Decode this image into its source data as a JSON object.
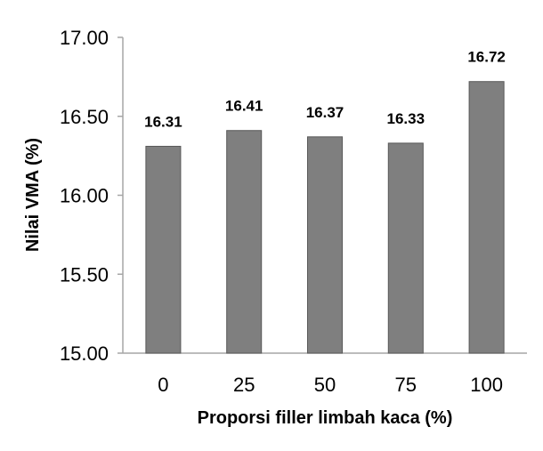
{
  "chart_data": {
    "type": "bar",
    "title": "",
    "xlabel": "Proporsi filler limbah kaca (%)",
    "ylabel": "Nilai VMA (%)",
    "categories": [
      "0",
      "25",
      "50",
      "75",
      "100"
    ],
    "values": [
      16.31,
      16.41,
      16.37,
      16.33,
      16.72
    ],
    "value_labels": [
      "16.31",
      "16.41",
      "16.37",
      "16.33",
      "16.72"
    ],
    "ylim": [
      15.0,
      17.0
    ],
    "yticks": [
      15.0,
      15.5,
      16.0,
      16.5,
      17.0
    ],
    "ytick_labels": [
      "15.00",
      "15.50",
      "16.00",
      "16.50",
      "17.00"
    ],
    "grid": false,
    "legend": "none",
    "bar_color": "#7f7f7f",
    "bar_edge_color": "#595959"
  }
}
